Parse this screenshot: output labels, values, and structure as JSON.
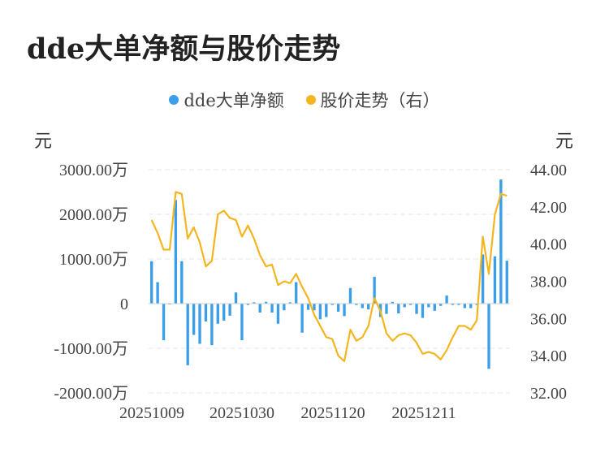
{
  "title": "dde大单净额与股价走势",
  "legend": [
    {
      "label": "dde大单净额",
      "color": "#3a9ee8"
    },
    {
      "label": "股价走势（右）",
      "color": "#f5b51f"
    }
  ],
  "units": {
    "left": "元",
    "right": "元"
  },
  "chart_data": {
    "type": "bar+line",
    "title": "dde大单净额与股价走势",
    "x_ticks": [
      "20251009",
      "20251030",
      "20251120",
      "20251211"
    ],
    "y_left": {
      "ticks": [
        "3000.00万",
        "2000.00万",
        "1000.00万",
        "0",
        "-1000.00万",
        "-2000.00万"
      ],
      "ylim": [
        -2000,
        3000
      ],
      "unit": "万"
    },
    "y_right": {
      "ticks": [
        "44.00",
        "42.00",
        "40.00",
        "38.00",
        "36.00",
        "34.00",
        "32.00"
      ],
      "ylim": [
        32,
        44
      ]
    },
    "grid": true,
    "legend_position": "top-center",
    "series": [
      {
        "name": "dde大单净额",
        "type": "bar",
        "axis": "left",
        "color": "#3a9ee8",
        "values": [
          950,
          480,
          -820,
          0,
          2320,
          950,
          -1380,
          -700,
          -900,
          -400,
          -930,
          -450,
          -380,
          -270,
          250,
          -820,
          -30,
          30,
          -200,
          40,
          -200,
          -450,
          -150,
          30,
          480,
          -650,
          -140,
          -150,
          -350,
          -300,
          -30,
          -180,
          -280,
          350,
          -30,
          -100,
          -130,
          600,
          -300,
          -230,
          40,
          -220,
          -80,
          -30,
          -230,
          -320,
          -80,
          -160,
          -50,
          180,
          -30,
          -30,
          -100,
          -100,
          -30,
          1100,
          -1460,
          1060,
          2780,
          960
        ]
      },
      {
        "name": "股价走势（右）",
        "type": "line",
        "axis": "right",
        "color": "#f5b51f",
        "values": [
          41.3,
          40.6,
          39.7,
          39.7,
          42.8,
          42.7,
          40.3,
          40.9,
          40.1,
          38.8,
          39.1,
          41.6,
          41.8,
          41.4,
          41.3,
          40.4,
          41.0,
          40.3,
          39.4,
          38.8,
          38.9,
          37.8,
          38.0,
          37.9,
          38.4,
          37.7,
          37.1,
          36.2,
          35.6,
          35.0,
          34.9,
          34.0,
          33.7,
          35.4,
          34.8,
          35.0,
          35.6,
          37.1,
          36.4,
          35.2,
          34.8,
          35.1,
          35.2,
          35.1,
          34.7,
          34.1,
          34.2,
          34.1,
          33.8,
          34.3,
          35.0,
          35.6,
          35.6,
          35.4,
          35.9,
          40.4,
          38.4,
          41.6,
          42.7,
          42.6
        ]
      }
    ]
  }
}
